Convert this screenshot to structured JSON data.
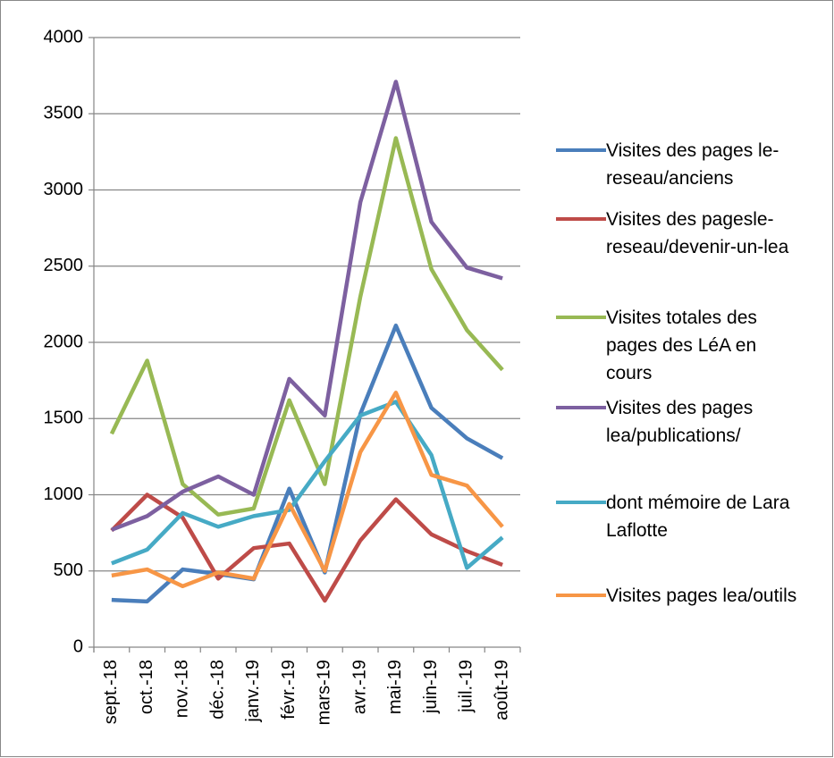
{
  "chart_data": {
    "type": "line",
    "categories": [
      "sept.-18",
      "oct.-18",
      "nov.-18",
      "déc.-18",
      "janv.-19",
      "févr.-19",
      "mars-19",
      "avr.-19",
      "mai-19",
      "juin-19",
      "juil.-19",
      "août-19"
    ],
    "series": [
      {
        "name": "Visites des pages le-reseau/anciens",
        "color": "#4a7ebb",
        "values": [
          310,
          300,
          510,
          480,
          445,
          1040,
          490,
          1530,
          2110,
          1570,
          1370,
          1240
        ]
      },
      {
        "name": "Visites des pagesle-reseau/devenir-un-lea",
        "color": "#be4b48",
        "values": [
          765,
          1000,
          850,
          450,
          650,
          680,
          305,
          700,
          970,
          740,
          630,
          540
        ]
      },
      {
        "name": "Visites totales des pages des LéA en cours",
        "color": "#98b954",
        "values": [
          1400,
          1880,
          1070,
          870,
          910,
          1620,
          1070,
          2300,
          3340,
          2480,
          2080,
          1820
        ]
      },
      {
        "name": "Visites des pages lea/publications/",
        "color": "#7d60a0",
        "values": [
          770,
          860,
          1020,
          1120,
          1000,
          1760,
          1520,
          2920,
          3710,
          2790,
          2490,
          2420
        ]
      },
      {
        "name": "dont mémoire de Lara Laflotte",
        "color": "#46aac5",
        "values": [
          550,
          640,
          880,
          790,
          860,
          900,
          1220,
          1520,
          1610,
          1260,
          520,
          720
        ]
      },
      {
        "name": "Visites pages lea/outils",
        "color": "#f79646",
        "values": [
          470,
          510,
          400,
          490,
          450,
          940,
          500,
          1280,
          1670,
          1130,
          1060,
          790
        ]
      }
    ],
    "ylim": [
      0,
      4000
    ],
    "yticks": [
      0,
      500,
      1000,
      1500,
      2000,
      2500,
      3000,
      3500,
      4000
    ],
    "grid": true,
    "legend": "right"
  }
}
